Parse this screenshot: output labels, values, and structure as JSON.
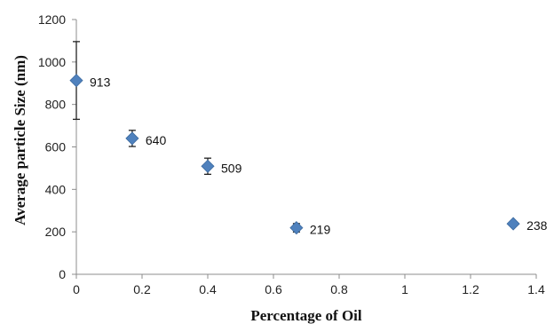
{
  "chart_data": {
    "type": "scatter",
    "xlabel": "Percentage of Oil",
    "ylabel": "Average particle  Size (nm)",
    "xlim": [
      0,
      1.4
    ],
    "ylim": [
      0,
      1200
    ],
    "x_ticks": [
      "0",
      "0.2",
      "0.4",
      "0.6",
      "0.8",
      "1",
      "1.2",
      "1.4"
    ],
    "y_ticks": [
      "0",
      "200",
      "400",
      "600",
      "800",
      "1000",
      "1200"
    ],
    "grid": false,
    "marker": "diamond",
    "marker_color": "#4f81bd",
    "points": [
      {
        "x": 0,
        "y": 913,
        "err": 183,
        "label": "913"
      },
      {
        "x": 0.17,
        "y": 640,
        "err": 38,
        "label": "640"
      },
      {
        "x": 0.4,
        "y": 509,
        "err": 38,
        "label": "509"
      },
      {
        "x": 0.67,
        "y": 219,
        "err": 20,
        "label": "219"
      },
      {
        "x": 1.33,
        "y": 238,
        "err": 0,
        "label": "238"
      }
    ]
  }
}
